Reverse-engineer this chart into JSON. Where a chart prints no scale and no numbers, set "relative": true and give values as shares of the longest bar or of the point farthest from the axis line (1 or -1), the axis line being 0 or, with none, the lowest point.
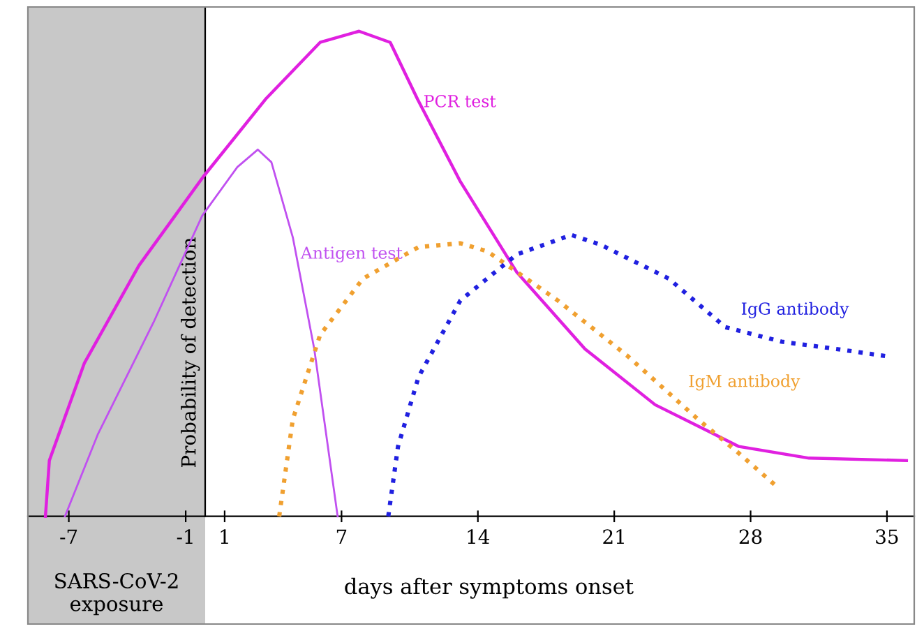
{
  "chart_data": {
    "type": "line",
    "relative": true,
    "xlabel": "days after symptoms onset",
    "ylabel": "Probability of detection",
    "xlim": [
      -9.1,
      36.4
    ],
    "xticks": [
      -7,
      -1,
      1,
      7,
      14,
      21,
      28,
      35
    ],
    "grid": false,
    "legend": false,
    "bands": [
      {
        "axis": "x",
        "from": -9.1,
        "to": 0,
        "label": "SARS-CoV-2\nexposure",
        "color": "#c8c8c8"
      }
    ],
    "series": [
      {
        "name": "PCR test",
        "color": "#e020e0",
        "line_style": "solid",
        "x": [
          -8.2,
          -8.0,
          -6.2,
          -3.4,
          -0.1,
          3.1,
          5.9,
          7.9,
          9.5,
          10.9,
          13.1,
          16.0,
          19.5,
          23.1,
          27.4,
          31.0,
          36.0
        ],
        "values": [
          0,
          0.115,
          0.316,
          0.517,
          0.7,
          0.86,
          0.977,
          1.0,
          0.977,
          0.86,
          0.69,
          0.503,
          0.345,
          0.23,
          0.144,
          0.12,
          0.115
        ]
      },
      {
        "name": "Antigen test",
        "color": "#c050f0",
        "line_style": "solid",
        "x": [
          -7.2,
          -5.5,
          -2.65,
          -0.15,
          1.65,
          2.7,
          3.4,
          4.5,
          5.6,
          6.8
        ],
        "values": [
          0,
          0.17,
          0.4,
          0.62,
          0.72,
          0.756,
          0.73,
          0.575,
          0.345,
          0
        ]
      },
      {
        "name": "IgM antibody",
        "color": "#f0a030",
        "line_style": "dotted",
        "x": [
          3.8,
          4.5,
          5.9,
          8.1,
          10.95,
          13.1,
          14.5,
          18.1,
          21.7,
          25.3,
          27.4,
          29.3
        ],
        "values": [
          0,
          0.2,
          0.374,
          0.49,
          0.555,
          0.563,
          0.546,
          0.445,
          0.33,
          0.2,
          0.13,
          0.063
        ]
      },
      {
        "name": "IgG antibody",
        "color": "#2020e0",
        "line_style": "dotted",
        "x": [
          9.4,
          9.9,
          10.95,
          13.1,
          16.0,
          18.8,
          20.3,
          23.8,
          26.7,
          29.6,
          32.4,
          35.0
        ],
        "values": [
          0,
          0.144,
          0.287,
          0.445,
          0.54,
          0.58,
          0.56,
          0.49,
          0.39,
          0.36,
          0.345,
          0.33
        ]
      }
    ]
  }
}
